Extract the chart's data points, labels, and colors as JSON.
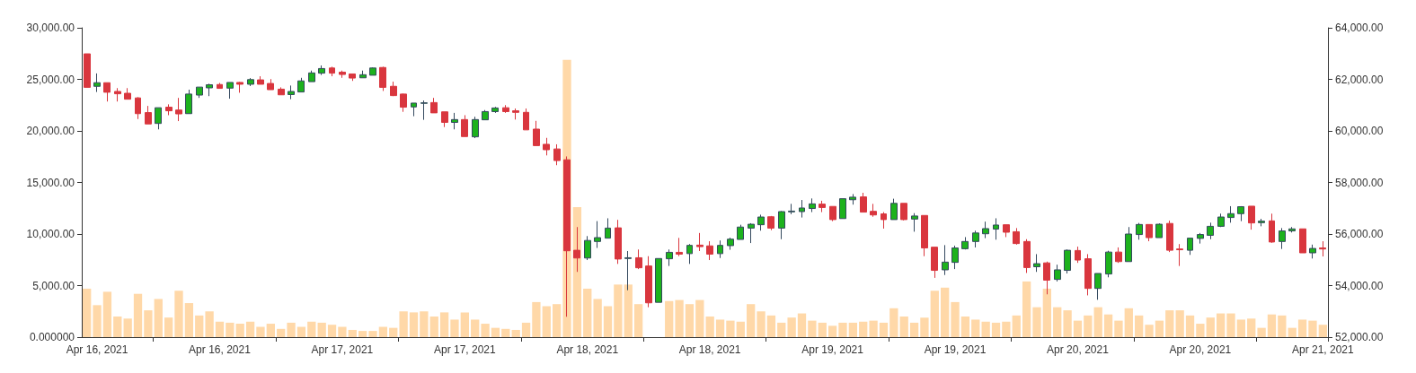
{
  "chart_data": {
    "type": "candlestick",
    "categories": [
      null,
      "Apr 16, 2021",
      null,
      null,
      null,
      null,
      null,
      null,
      null,
      null,
      null,
      null,
      null,
      "Apr 16, 2021",
      null,
      null,
      null,
      null,
      null,
      null,
      null,
      null,
      null,
      null,
      null,
      "Apr 17, 2021",
      null,
      null,
      null,
      null,
      null,
      null,
      null,
      null,
      null,
      null,
      null,
      "Apr 17, 2021",
      null,
      null,
      null,
      null,
      null,
      null,
      null,
      null,
      null,
      null,
      null,
      "Apr 18, 2021",
      null,
      null,
      null,
      null,
      null,
      null,
      null,
      null,
      null,
      null,
      null,
      "Apr 18, 2021",
      null,
      null,
      null,
      null,
      null,
      null,
      null,
      null,
      null,
      null,
      null,
      "Apr 19, 2021",
      null,
      null,
      null,
      null,
      null,
      null,
      null,
      null,
      null,
      null,
      null,
      "Apr 19, 2021",
      null,
      null,
      null,
      null,
      null,
      null,
      null,
      null,
      null,
      null,
      null,
      "Apr 20, 2021",
      null,
      null,
      null,
      null,
      null,
      null,
      null,
      null,
      null,
      null,
      null,
      "Apr 20, 2021",
      null,
      null,
      null,
      null,
      null,
      null,
      null,
      null,
      null,
      null,
      null,
      "Apr 21, 2021"
    ],
    "series": [
      {
        "type": "bar",
        "color": "#ffd8a8",
        "values": [
          4700,
          3100,
          4400,
          2000,
          1800,
          4200,
          2600,
          3700,
          1900,
          4500,
          3300,
          2100,
          2500,
          1500,
          1400,
          1300,
          1500,
          1000,
          1300,
          800,
          1400,
          1000,
          1500,
          1400,
          1200,
          1000,
          700,
          600,
          600,
          1000,
          900,
          2500,
          2400,
          2500,
          2000,
          2400,
          1700,
          2400,
          1700,
          1300,
          900,
          800,
          700,
          1400,
          3400,
          3000,
          3200,
          26900,
          12600,
          4700,
          3700,
          3000,
          5100,
          5100,
          3200,
          null,
          null,
          3500,
          3600,
          3200,
          3600,
          2000,
          1700,
          1600,
          1500,
          3200,
          2500,
          2100,
          1400,
          1900,
          2300,
          1600,
          1400,
          1100,
          1400,
          1400,
          1500,
          1600,
          1400,
          2800,
          2000,
          1400,
          1900,
          4500,
          4800,
          3400,
          2000,
          1700,
          1500,
          1400,
          1500,
          2100,
          5400,
          2900,
          4700,
          2900,
          2600,
          1600,
          2100,
          2900,
          2200,
          1600,
          2800,
          2100,
          1200,
          1600,
          2600,
          2600,
          2100,
          1300,
          1900,
          2300,
          2300,
          1700,
          1800,
          900,
          2200,
          2100,
          900,
          1700,
          1600,
          1200
        ]
      },
      {
        "axis": "y2",
        "colors": [
          "#d9363e",
          "#1db21d",
          "#d9363e",
          "#d9363e",
          "#d9363e",
          "#d9363e",
          "#d9363e",
          "#1db21d",
          "#d9363e",
          "#d9363e",
          "#1db21d",
          "#1db21d",
          "#1db21d",
          "#d9363e",
          "#1db21d",
          "#d9363e",
          "#1db21d",
          "#d9363e",
          "#d9363e",
          "#d9363e",
          "#1db21d",
          "#1db21d",
          "#1db21d",
          "#1db21d",
          "#d9363e",
          "#d9363e",
          "#d9363e",
          "#1db21d",
          "#1db21d",
          "#d9363e",
          "#d9363e",
          "#d9363e",
          "#1db21d",
          "#1db21d",
          "#d9363e",
          "#d9363e",
          "#1db21d",
          "#d9363e",
          "#1db21d",
          "#1db21d",
          "#1db21d",
          "#d9363e",
          "#d9363e",
          "#d9363e",
          "#d9363e",
          "#d9363e",
          "#d9363e",
          "#d9363e",
          "#d9363e",
          "#1db21d",
          "#1db21d",
          "#1db21d",
          "#d9363e",
          "#1db21d",
          "#d9363e",
          "#d9363e",
          "#1db21d",
          "#1db21d",
          "#d9363e",
          "#1db21d",
          "#d9363e",
          "#d9363e",
          "#1db21d",
          "#1db21d",
          "#1db21d",
          "#1db21d",
          "#1db21d",
          "#d9363e",
          "#1db21d",
          "#1db21d",
          "#1db21d",
          "#1db21d",
          "#d9363e",
          "#d9363e",
          "#1db21d",
          "#1db21d",
          "#d9363e",
          "#d9363e",
          "#d9363e",
          "#1db21d",
          "#d9363e",
          "#1db21d",
          "#d9363e",
          "#d9363e",
          "#1db21d",
          "#1db21d",
          "#1db21d",
          "#1db21d",
          "#1db21d",
          "#1db21d",
          "#d9363e",
          "#d9363e",
          "#d9363e",
          "#1db21d",
          "#d9363e",
          "#1db21d",
          "#1db21d",
          "#d9363e",
          "#d9363e",
          "#1db21d",
          "#1db21d",
          "#d9363e",
          "#1db21d",
          "#1db21d",
          "#d9363e",
          "#1db21d",
          "#d9363e",
          "#d9363e",
          "#1db21d",
          "#1db21d",
          "#1db21d",
          "#1db21d",
          "#1db21d",
          "#1db21d",
          "#d9363e",
          "#1db21d",
          "#d9363e",
          "#1db21d",
          "#1db21d",
          "#d9363e",
          "#1db21d",
          "#d9363e"
        ],
        "ohlc": [
          [
            62990,
            62990,
            61690,
            61690
          ],
          [
            61730,
            62230,
            61510,
            61870
          ],
          [
            61870,
            61870,
            61140,
            61500
          ],
          [
            61530,
            61660,
            61140,
            61440
          ],
          [
            61460,
            61660,
            61230,
            61230
          ],
          [
            61280,
            61310,
            60460,
            60670
          ],
          [
            60710,
            60970,
            60270,
            60270
          ],
          [
            60290,
            60900,
            60060,
            60900
          ],
          [
            60920,
            61030,
            60610,
            60780
          ],
          [
            60810,
            61280,
            60380,
            60660
          ],
          [
            60670,
            61600,
            60670,
            61430
          ],
          [
            61390,
            61700,
            61280,
            61700
          ],
          [
            61670,
            61830,
            61350,
            61790
          ],
          [
            61800,
            61860,
            61650,
            61650
          ],
          [
            61660,
            61880,
            61250,
            61880
          ],
          [
            61880,
            61900,
            61480,
            61810
          ],
          [
            61810,
            62050,
            61740,
            61990
          ],
          [
            61980,
            62120,
            61810,
            61810
          ],
          [
            61840,
            62010,
            61600,
            61600
          ],
          [
            61620,
            61690,
            61400,
            61400
          ],
          [
            61410,
            61760,
            61230,
            61530
          ],
          [
            61510,
            62060,
            61510,
            61940
          ],
          [
            61910,
            62340,
            61910,
            62250
          ],
          [
            62240,
            62540,
            62170,
            62420
          ],
          [
            62440,
            62490,
            62120,
            62240
          ],
          [
            62280,
            62340,
            62060,
            62190
          ],
          [
            62210,
            62210,
            61940,
            62050
          ],
          [
            62060,
            62340,
            62060,
            62180
          ],
          [
            62160,
            62460,
            62160,
            62440
          ],
          [
            62460,
            62490,
            61550,
            61690
          ],
          [
            61730,
            61910,
            61350,
            61370
          ],
          [
            61430,
            61450,
            60740,
            60920
          ],
          [
            60930,
            61080,
            60570,
            61080
          ],
          [
            61070,
            61180,
            60430,
            61090
          ],
          [
            61100,
            61280,
            60700,
            60700
          ],
          [
            60740,
            60740,
            60150,
            60330
          ],
          [
            60330,
            60700,
            60060,
            60440
          ],
          [
            60440,
            60610,
            59780,
            59780
          ],
          [
            59770,
            60550,
            59720,
            60440
          ],
          [
            60430,
            60810,
            60430,
            60750
          ],
          [
            60750,
            60930,
            60700,
            60890
          ],
          [
            60900,
            61000,
            60700,
            60750
          ],
          [
            60780,
            60870,
            60440,
            60720
          ],
          [
            60720,
            60870,
            60040,
            60040
          ],
          [
            60070,
            60390,
            59430,
            59430
          ],
          [
            59480,
            59730,
            59050,
            59270
          ],
          [
            59300,
            59480,
            58670,
            58850
          ],
          [
            58880,
            59010,
            52790,
            55350
          ],
          [
            55370,
            56270,
            54530,
            55070
          ],
          [
            55070,
            55920,
            54990,
            55750
          ],
          [
            55710,
            56500,
            55460,
            55860
          ],
          [
            55840,
            56610,
            55840,
            56230
          ],
          [
            56240,
            56550,
            54840,
            55030
          ],
          [
            55050,
            55340,
            53820,
            55080
          ],
          [
            55080,
            55400,
            54640,
            54690
          ],
          [
            54760,
            55140,
            53160,
            53330
          ],
          [
            53350,
            55050,
            53350,
            55050
          ],
          [
            55040,
            55400,
            54760,
            55290
          ],
          [
            55290,
            55850,
            55140,
            55220
          ],
          [
            55240,
            55610,
            54840,
            55560
          ],
          [
            55570,
            56040,
            55340,
            55510
          ],
          [
            55540,
            55720,
            54990,
            55220
          ],
          [
            55240,
            55750,
            55070,
            55560
          ],
          [
            55550,
            55860,
            55390,
            55800
          ],
          [
            55790,
            56360,
            55790,
            56270
          ],
          [
            56230,
            56420,
            55650,
            56380
          ],
          [
            56360,
            56750,
            56130,
            56660
          ],
          [
            56670,
            56700,
            56150,
            56230
          ],
          [
            56230,
            56890,
            55800,
            56870
          ],
          [
            56860,
            57170,
            56770,
            56890
          ],
          [
            56870,
            57320,
            56640,
            57010
          ],
          [
            56990,
            57380,
            56850,
            57170
          ],
          [
            57160,
            57290,
            56850,
            57030
          ],
          [
            57070,
            57070,
            56500,
            56560
          ],
          [
            56600,
            57370,
            56600,
            57370
          ],
          [
            57330,
            57550,
            57140,
            57430
          ],
          [
            57440,
            57600,
            56850,
            56850
          ],
          [
            56880,
            57170,
            56670,
            56740
          ],
          [
            56780,
            56850,
            56210,
            56560
          ],
          [
            56560,
            57370,
            56560,
            57190
          ],
          [
            57190,
            57190,
            56530,
            56560
          ],
          [
            56580,
            56810,
            56090,
            56700
          ],
          [
            56720,
            56720,
            55140,
            55460
          ],
          [
            55490,
            55490,
            54300,
            54590
          ],
          [
            54610,
            55570,
            54410,
            54910
          ],
          [
            54900,
            55550,
            54640,
            55460
          ],
          [
            55430,
            55880,
            55400,
            55710
          ],
          [
            55710,
            56130,
            55480,
            56040
          ],
          [
            56010,
            56480,
            55840,
            56210
          ],
          [
            56190,
            56610,
            55780,
            56350
          ],
          [
            56360,
            56360,
            55880,
            56070
          ],
          [
            56090,
            56230,
            55590,
            55630
          ],
          [
            55710,
            55800,
            54490,
            54700
          ],
          [
            54730,
            55220,
            54530,
            54850
          ],
          [
            54880,
            54930,
            53660,
            54210
          ],
          [
            54240,
            54810,
            54160,
            54610
          ],
          [
            54590,
            55400,
            54470,
            55370
          ],
          [
            55360,
            55510,
            54880,
            54990
          ],
          [
            55040,
            55220,
            53620,
            53890
          ],
          [
            53890,
            54470,
            53450,
            54470
          ],
          [
            54450,
            55350,
            54320,
            55300
          ],
          [
            55300,
            55480,
            54880,
            54930
          ],
          [
            54930,
            56270,
            54930,
            56000
          ],
          [
            55980,
            56430,
            55780,
            56370
          ],
          [
            56370,
            56370,
            55720,
            55860
          ],
          [
            55860,
            56410,
            55860,
            56380
          ],
          [
            56410,
            56520,
            55300,
            55370
          ],
          [
            55420,
            55610,
            54760,
            55390
          ],
          [
            55370,
            55840,
            55190,
            55840
          ],
          [
            55830,
            56040,
            55630,
            55980
          ],
          [
            55950,
            56440,
            55800,
            56300
          ],
          [
            56300,
            56790,
            56270,
            56660
          ],
          [
            56640,
            57080,
            56440,
            56790
          ],
          [
            56790,
            57080,
            56500,
            57060
          ],
          [
            57080,
            57080,
            56170,
            56430
          ],
          [
            56440,
            56590,
            56300,
            56500
          ],
          [
            56510,
            56790,
            55660,
            55690
          ],
          [
            55710,
            56230,
            55420,
            56120
          ],
          [
            56120,
            56270,
            56060,
            56200
          ],
          [
            56200,
            56200,
            55270,
            55270
          ],
          [
            55270,
            55590,
            55050,
            55440
          ],
          [
            55460,
            55720,
            55130,
            55420
          ]
        ]
      }
    ],
    "ylim": [
      0,
      30000
    ],
    "yticks": [
      {
        "value": 0,
        "label": "0.000000"
      },
      {
        "value": 5000,
        "label": "5,000.00"
      },
      {
        "value": 10000,
        "label": "10,000.00"
      },
      {
        "value": 15000,
        "label": "15,000.00"
      },
      {
        "value": 20000,
        "label": "20,000.00"
      },
      {
        "value": 25000,
        "label": "25,000.00"
      },
      {
        "value": 30000,
        "label": "30,000.00"
      }
    ],
    "y2lim": [
      52000,
      64000
    ],
    "y2ticks": [
      {
        "value": 52000,
        "label": "52,000.00"
      },
      {
        "value": 54000,
        "label": "54,000.00"
      },
      {
        "value": 56000,
        "label": "56,000.00"
      },
      {
        "value": 58000,
        "label": "58,000.00"
      },
      {
        "value": 60000,
        "label": "60,000.00"
      },
      {
        "value": 62000,
        "label": "62,000.00"
      },
      {
        "value": 64000,
        "label": "64,000.00"
      }
    ],
    "grid": false
  }
}
